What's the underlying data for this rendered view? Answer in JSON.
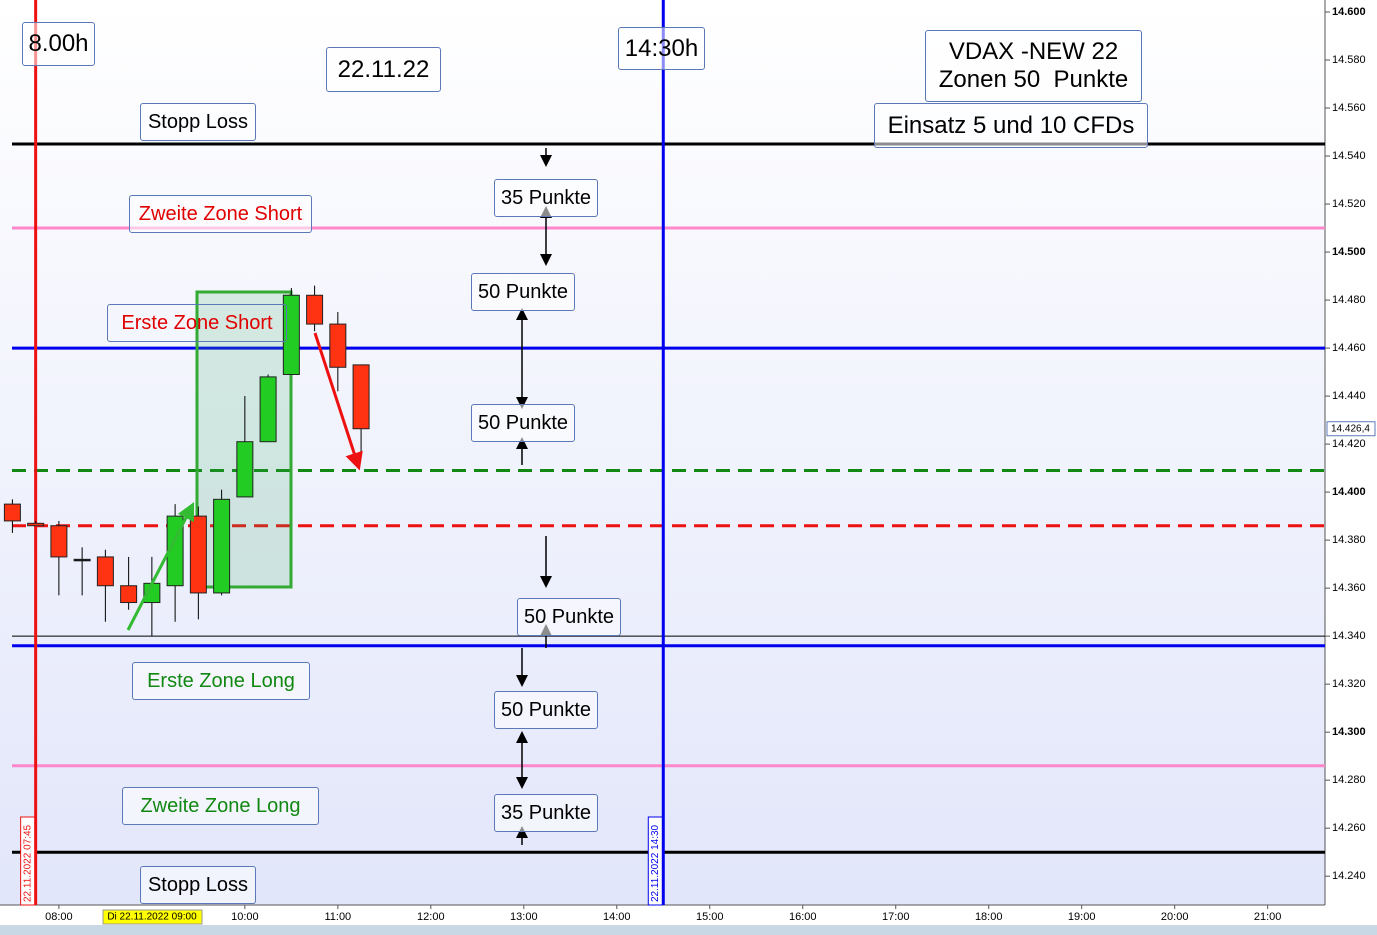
{
  "chart_data": {
    "type": "candlestick",
    "x": [
      "07:30",
      "07:45",
      "08:00",
      "08:15",
      "08:30",
      "08:45",
      "09:00",
      "09:15",
      "09:30",
      "09:45",
      "10:00",
      "10:15",
      "10:30",
      "10:45",
      "11:00",
      "11:15"
    ],
    "open": [
      14395,
      14387,
      14386,
      14372,
      14373,
      14361,
      14354,
      14361,
      14390,
      14358,
      14398,
      14421,
      14449,
      14482,
      14470,
      14453
    ],
    "high": [
      14397,
      14388,
      14388,
      14377,
      14376,
      14373,
      14373,
      14395,
      14394,
      14401,
      14440,
      14449,
      14485,
      14486,
      14475,
      14453
    ],
    "low": [
      14383,
      14386,
      14357,
      14357,
      14346,
      14351,
      14340,
      14346,
      14347,
      14357,
      14398,
      14421,
      14449,
      14467,
      14442,
      14415
    ],
    "close": [
      14388,
      14386,
      14373,
      14372,
      14361,
      14354,
      14362,
      14390,
      14358,
      14397,
      14421,
      14448,
      14482,
      14470,
      14452,
      14426.4
    ],
    "up_color": "#22cc22",
    "down_color": "#ff3311",
    "xlim": [
      "07:22",
      "21:37"
    ],
    "xticks": [
      "08:00",
      "10:00",
      "11:00",
      "12:00",
      "13:00",
      "14:00",
      "15:00",
      "16:00",
      "17:00",
      "18:00",
      "19:00",
      "20:00",
      "21:00"
    ],
    "cursor_label": "Di 22.11.2022 09:00",
    "ylim": [
      14228,
      14605
    ],
    "yticks": [
      {
        "value": 14600,
        "label": "14.600"
      },
      {
        "value": 14580,
        "label": "14.580"
      },
      {
        "value": 14560,
        "label": "14.560"
      },
      {
        "value": 14540,
        "label": "14.540"
      },
      {
        "value": 14520,
        "label": "14.520"
      },
      {
        "value": 14500,
        "label": "14.500"
      },
      {
        "value": 14480,
        "label": "14.480"
      },
      {
        "value": 14460,
        "label": "14.460"
      },
      {
        "value": 14440,
        "label": "14.440"
      },
      {
        "value": 14420,
        "label": "14.420"
      },
      {
        "value": 14400,
        "label": "14.400"
      },
      {
        "value": 14380,
        "label": "14.380"
      },
      {
        "value": 14360,
        "label": "14.360"
      },
      {
        "value": 14340,
        "label": "14.340"
      },
      {
        "value": 14320,
        "label": "14.320"
      },
      {
        "value": 14300,
        "label": "14.300"
      },
      {
        "value": 14280,
        "label": "14.280"
      },
      {
        "value": 14260,
        "label": "14.260"
      },
      {
        "value": 14240,
        "label": "14.240"
      }
    ],
    "last_price": {
      "value": 14426.4,
      "label": "14.426,4"
    },
    "hlines": [
      {
        "value": 14545,
        "color": "#000000",
        "style": "solid",
        "width": 3
      },
      {
        "value": 14510,
        "color": "#ff88cc",
        "style": "solid",
        "width": 3
      },
      {
        "value": 14460,
        "color": "#0000ee",
        "style": "solid",
        "width": 3
      },
      {
        "value": 14409,
        "color": "#118811",
        "style": "dashed",
        "width": 3
      },
      {
        "value": 14386,
        "color": "#ee1111",
        "style": "dashed",
        "width": 3
      },
      {
        "value": 14340,
        "color": "#000000",
        "style": "solid",
        "width": 1
      },
      {
        "value": 14336,
        "color": "#0000ee",
        "style": "solid",
        "width": 3
      },
      {
        "value": 14286,
        "color": "#ff88cc",
        "style": "solid",
        "width": 3
      },
      {
        "value": 14250,
        "color": "#000000",
        "style": "solid",
        "width": 3
      }
    ],
    "vlines": [
      {
        "x": "07:45",
        "color": "#ee1111",
        "label": "22.11.2022 07:45"
      },
      {
        "x": "14:30",
        "color": "#0000ee",
        "label": "22.11.2022 14:30"
      }
    ],
    "annotations": [
      "8.00h",
      "22.11.22",
      "14:30h",
      "VDAX -NEW 22",
      "Zonen 50  Punkte",
      "Einsatz 5 und 10 CFDs",
      "Stopp Loss",
      "Zweite Zone Short",
      "Erste Zone Short",
      "35 Punkte",
      "50 Punkte",
      "50 Punkte",
      "50 Punkte",
      "Erste Zone Long",
      "50 Punkte",
      "Zweite Zone Long",
      "35 Punkte",
      "Stopp Loss"
    ]
  }
}
